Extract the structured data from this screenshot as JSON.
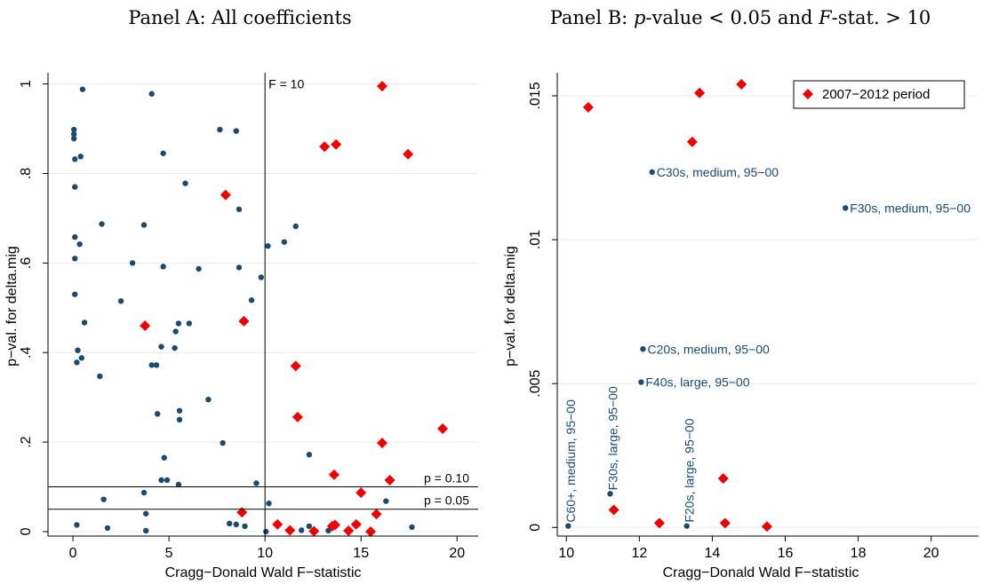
{
  "colors": {
    "dot": "#1a4a72",
    "diamond": "#ee0000",
    "grid": "#e8ecef",
    "axis": "#000000"
  },
  "chart_data": [
    {
      "type": "scatter",
      "panel": "A",
      "title": {
        "prefix": "Panel A: All coefficients"
      },
      "xlabel": "Cragg−Donald Wald F−statistic",
      "ylabel": "p−val. for delta.mig",
      "xlim": [
        -1.3,
        21.1
      ],
      "ylim": [
        -0.01,
        1.025
      ],
      "xticks": [
        0,
        5,
        10,
        15,
        20
      ],
      "xtick_labels": [
        "0",
        "5",
        "10",
        "15",
        "20"
      ],
      "yticks": [
        0,
        0.2,
        0.4,
        0.6,
        0.8,
        1
      ],
      "ytick_labels": [
        "0",
        ".2",
        ".4",
        ".6",
        ".8",
        "1"
      ],
      "grid": true,
      "reference_lines": [
        {
          "axis": "x",
          "value": 10,
          "label": "F = 10"
        },
        {
          "axis": "y",
          "value": 0.1,
          "label": "p = 0.10"
        },
        {
          "axis": "y",
          "value": 0.05,
          "label": "p = 0.05"
        }
      ],
      "series": [
        {
          "marker": "circle",
          "points": [
            [
              0.05,
              0.898
            ],
            [
              0.05,
              0.888
            ],
            [
              0.05,
              0.878
            ],
            [
              0.1,
              0.832
            ],
            [
              0.4,
              0.838
            ],
            [
              0.5,
              0.988
            ],
            [
              0.1,
              0.77
            ],
            [
              0.1,
              0.658
            ],
            [
              0.35,
              0.642
            ],
            [
              0.1,
              0.61
            ],
            [
              0.1,
              0.53
            ],
            [
              0.6,
              0.467
            ],
            [
              0.25,
              0.405
            ],
            [
              0.2,
              0.378
            ],
            [
              0.45,
              0.388
            ],
            [
              0.2,
              0.015
            ],
            [
              1.4,
              0.347
            ],
            [
              1.5,
              0.687
            ],
            [
              1.6,
              0.072
            ],
            [
              1.8,
              0.008
            ],
            [
              2.5,
              0.515
            ],
            [
              3.1,
              0.6
            ],
            [
              3.7,
              0.685
            ],
            [
              3.7,
              0.087
            ],
            [
              3.8,
              0.04
            ],
            [
              3.8,
              0.002
            ],
            [
              4.1,
              0.978
            ],
            [
              4.1,
              0.372
            ],
            [
              4.35,
              0.372
            ],
            [
              4.4,
              0.263
            ],
            [
              4.6,
              0.413
            ],
            [
              4.6,
              0.115
            ],
            [
              4.7,
              0.592
            ],
            [
              4.7,
              0.845
            ],
            [
              4.75,
              0.165
            ],
            [
              4.9,
              0.115
            ],
            [
              5.3,
              0.41
            ],
            [
              5.35,
              0.447
            ],
            [
              5.5,
              0.465
            ],
            [
              5.5,
              0.105
            ],
            [
              5.55,
              0.27
            ],
            [
              5.55,
              0.25
            ],
            [
              5.85,
              0.778
            ],
            [
              6.05,
              0.465
            ],
            [
              6.55,
              0.587
            ],
            [
              7.05,
              0.295
            ],
            [
              7.65,
              0.898
            ],
            [
              7.8,
              0.198
            ],
            [
              8.15,
              0.018
            ],
            [
              8.5,
              0.895
            ],
            [
              8.5,
              0.016
            ],
            [
              8.65,
              0.72
            ],
            [
              8.65,
              0.59
            ],
            [
              8.95,
              0.012
            ],
            [
              9.3,
              0.517
            ],
            [
              9.55,
              0.108
            ],
            [
              9.8,
              0.568
            ],
            [
              10.05,
              0.0
            ],
            [
              10.15,
              0.638
            ],
            [
              10.2,
              0.063
            ],
            [
              11.0,
              0.647
            ],
            [
              11.6,
              0.682
            ],
            [
              11.9,
              0.003
            ],
            [
              12.3,
              0.172
            ],
            [
              12.3,
              0.012
            ],
            [
              13.3,
              0.002
            ],
            [
              16.3,
              0.068
            ],
            [
              17.65,
              0.01
            ]
          ]
        },
        {
          "name": "2007−2012 period",
          "marker": "diamond",
          "points": [
            [
              16.1,
              0.995
            ],
            [
              13.1,
              0.86
            ],
            [
              13.7,
              0.865
            ],
            [
              17.45,
              0.843
            ],
            [
              7.95,
              0.752
            ],
            [
              3.75,
              0.46
            ],
            [
              8.9,
              0.47
            ],
            [
              11.6,
              0.37
            ],
            [
              11.7,
              0.256
            ],
            [
              16.1,
              0.198
            ],
            [
              19.25,
              0.23
            ],
            [
              13.6,
              0.127
            ],
            [
              16.5,
              0.115
            ],
            [
              15.0,
              0.087
            ],
            [
              8.8,
              0.043
            ],
            [
              15.8,
              0.039
            ],
            [
              10.65,
              0.016
            ],
            [
              11.3,
              0.003
            ],
            [
              12.55,
              0.001
            ],
            [
              13.5,
              0.012
            ],
            [
              13.65,
              0.015
            ],
            [
              14.35,
              0.002
            ],
            [
              14.75,
              0.016
            ],
            [
              15.5,
              0.0
            ]
          ]
        }
      ]
    },
    {
      "type": "scatter",
      "panel": "B",
      "title": {
        "prefix": "Panel B: ",
        "p": "p",
        "mid": "-value < 0.05 and ",
        "F": "F",
        "suffix": "-stat. > 10"
      },
      "xlabel": "Cragg−Donald Wald F−statistic",
      "ylabel": "p−val. for delta.mig",
      "xlim": [
        9.75,
        21.3
      ],
      "ylim": [
        -0.0003,
        0.0158
      ],
      "xticks": [
        10,
        12,
        14,
        16,
        18,
        20
      ],
      "xtick_labels": [
        "10",
        "12",
        "14",
        "16",
        "18",
        "20"
      ],
      "yticks": [
        0,
        0.005,
        0.01,
        0.015
      ],
      "ytick_labels": [
        "0",
        ".005",
        ".01",
        ".015"
      ],
      "grid": true,
      "legend": {
        "position": "top-right",
        "label": "2007−2012 period"
      },
      "series": [
        {
          "marker": "circle",
          "points": [
            [
              10.05,
              5e-05
            ],
            [
              11.2,
              0.00117
            ],
            [
              12.05,
              0.00505
            ],
            [
              12.1,
              0.0062
            ],
            [
              12.35,
              0.01235
            ],
            [
              13.3,
              5e-05
            ],
            [
              17.65,
              0.0111
            ]
          ],
          "labels": [
            "C60+, medium,  95−00",
            "F30s, large,  95−00",
            "F40s, large,  95−00",
            "C20s, medium,  95−00",
            "C30s, medium,  95−00",
            "F20s, large,  95−00",
            "F30s, medium,  95−00"
          ]
        },
        {
          "name": "2007−2012 period",
          "marker": "diamond",
          "points": [
            [
              10.6,
              0.0146
            ],
            [
              11.3,
              0.00061
            ],
            [
              12.55,
              0.00015
            ],
            [
              13.45,
              0.0134
            ],
            [
              13.65,
              0.0151
            ],
            [
              14.3,
              0.0017
            ],
            [
              14.35,
              0.00015
            ],
            [
              14.8,
              0.0154
            ],
            [
              15.5,
              3e-05
            ]
          ]
        }
      ]
    }
  ]
}
